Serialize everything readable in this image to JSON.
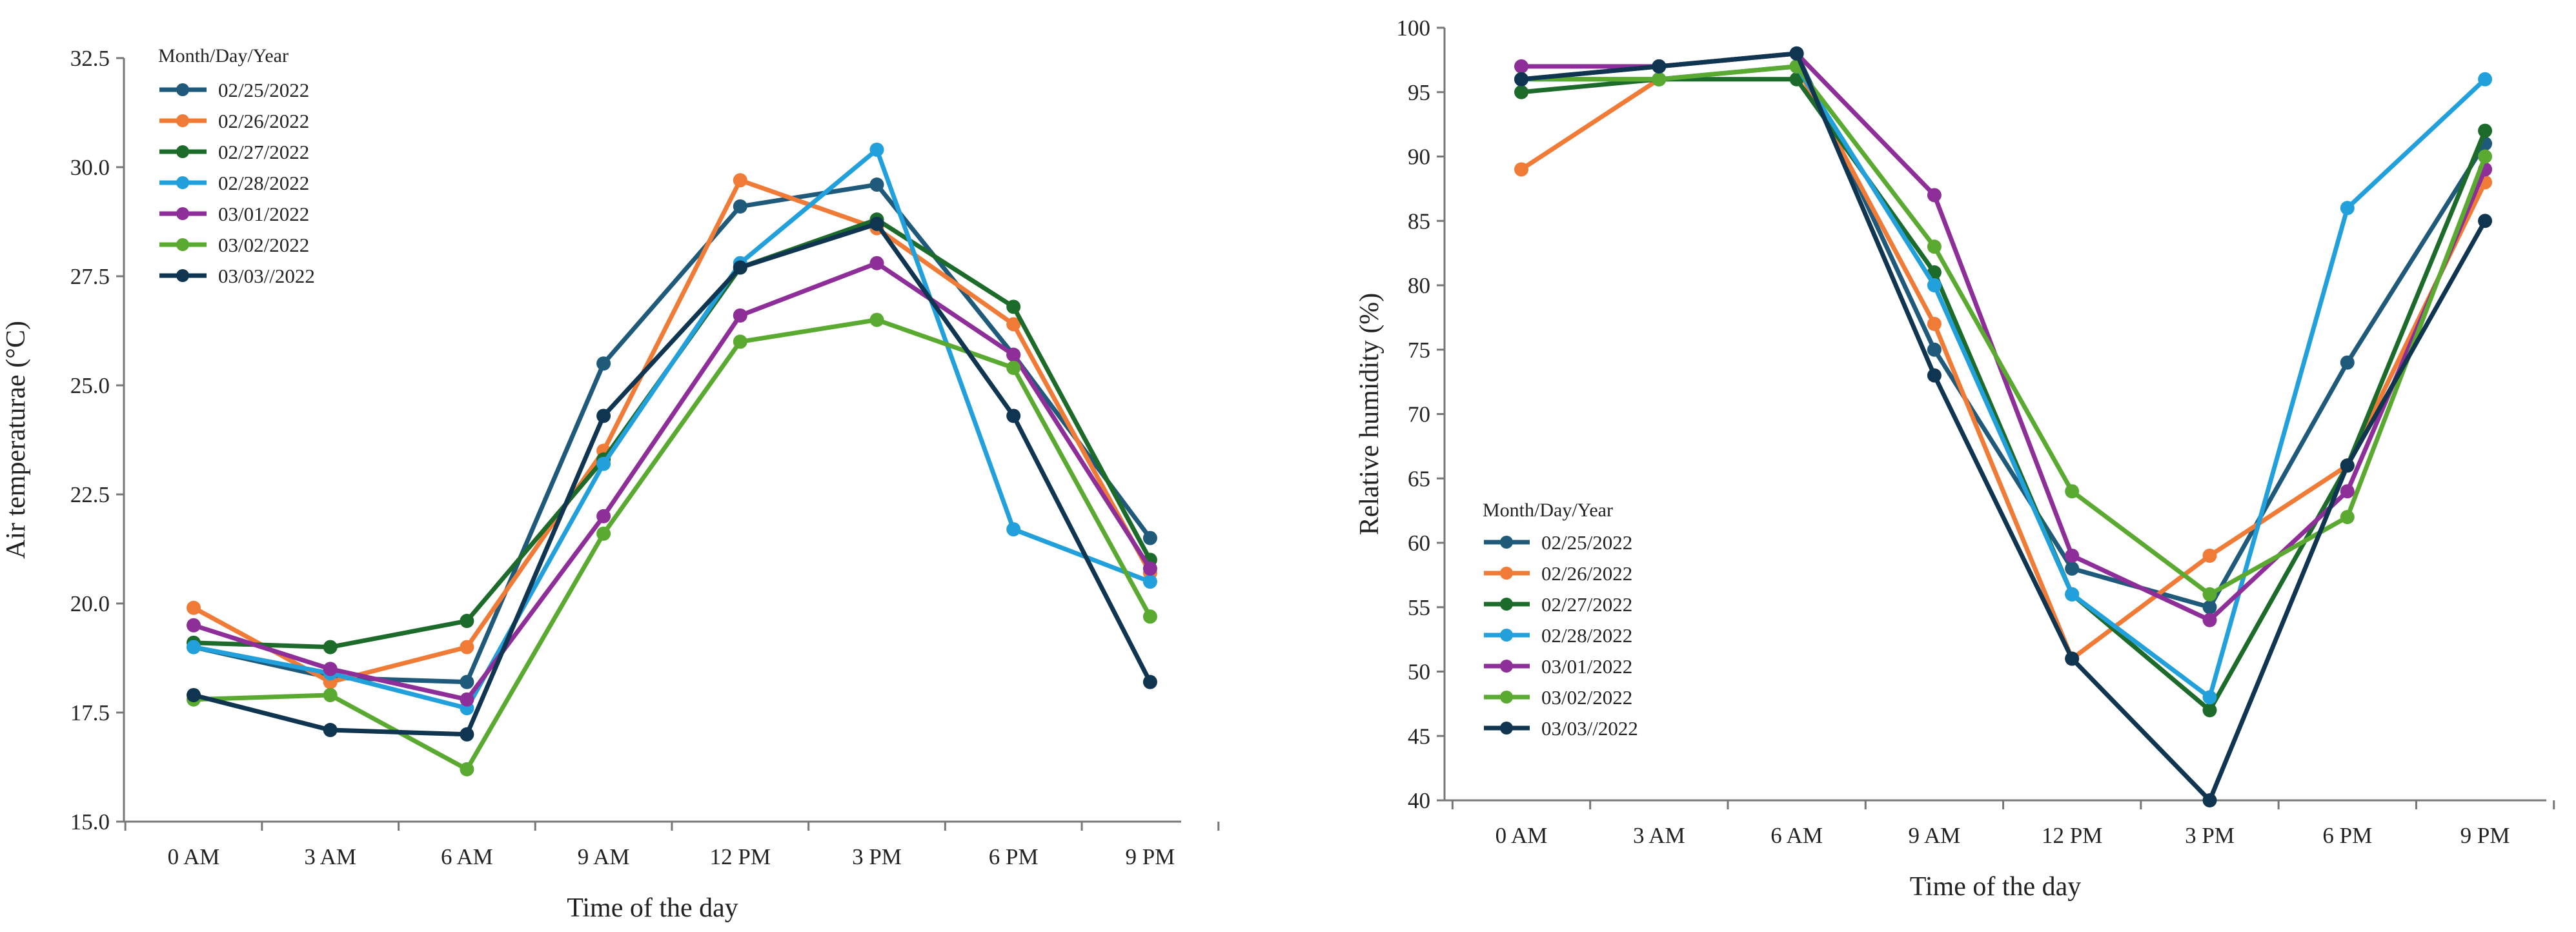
{
  "chart_data": [
    {
      "type": "line",
      "title": "",
      "xlabel": "Time of the day",
      "ylabel": "Air temperaturae (°C)",
      "ylim": [
        15.0,
        32.5
      ],
      "yticks": [
        "15.0",
        "17.5",
        "20.0",
        "22.5",
        "25.0",
        "27.5",
        "30.0",
        "32.5"
      ],
      "categories": [
        "0 AM",
        "3 AM",
        "6 AM",
        "9 AM",
        "12 PM",
        "3 PM",
        "6 PM",
        "9 PM"
      ],
      "legend_title": "Month/Day/Year",
      "legend_position": "top-left",
      "grid": false,
      "series": [
        {
          "name": "02/25/2022",
          "color": "#1F5A7A",
          "values": [
            19.0,
            18.3,
            18.2,
            25.5,
            29.1,
            29.6,
            25.7,
            21.5
          ]
        },
        {
          "name": "02/26/2022",
          "color": "#F07B36",
          "values": [
            19.9,
            18.2,
            19.0,
            23.5,
            29.7,
            28.6,
            26.4,
            20.7
          ]
        },
        {
          "name": "02/27/2022",
          "color": "#1D6B2A",
          "values": [
            19.1,
            19.0,
            19.6,
            23.3,
            27.7,
            28.8,
            26.8,
            21.0
          ]
        },
        {
          "name": "02/28/2022",
          "color": "#22A0DC",
          "values": [
            19.0,
            18.4,
            17.6,
            23.2,
            27.8,
            30.4,
            21.7,
            20.5
          ]
        },
        {
          "name": "03/01/2022",
          "color": "#8E2E98",
          "values": [
            19.5,
            18.5,
            17.8,
            22.0,
            26.6,
            27.8,
            25.7,
            20.8
          ]
        },
        {
          "name": "03/02/2022",
          "color": "#5AAA32",
          "values": [
            17.8,
            17.9,
            16.2,
            21.6,
            26.0,
            26.5,
            25.4,
            19.7
          ]
        },
        {
          "name": "03/03//2022",
          "color": "#0F3550",
          "values": [
            17.9,
            17.1,
            17.0,
            24.3,
            27.7,
            28.7,
            24.3,
            18.2
          ]
        }
      ]
    },
    {
      "type": "line",
      "title": "",
      "xlabel": "Time of the day",
      "ylabel": "Relative humidity (%)",
      "ylim": [
        40,
        100
      ],
      "yticks": [
        "40",
        "45",
        "50",
        "55",
        "60",
        "65",
        "70",
        "75",
        "80",
        "85",
        "90",
        "95",
        "100"
      ],
      "categories": [
        "0 AM",
        "3 AM",
        "6 AM",
        "9 AM",
        "12 PM",
        "3 PM",
        "6 PM",
        "9 PM"
      ],
      "legend_title": "Month/Day/Year",
      "legend_position": "bottom-left",
      "grid": false,
      "series": [
        {
          "name": "02/25/2022",
          "color": "#1F5A7A",
          "values": [
            96,
            97,
            98,
            75,
            58,
            55,
            74,
            91
          ]
        },
        {
          "name": "02/26/2022",
          "color": "#F07B36",
          "values": [
            89,
            96,
            97,
            77,
            51,
            59,
            66,
            88
          ]
        },
        {
          "name": "02/27/2022",
          "color": "#1D6B2A",
          "values": [
            95,
            96,
            96,
            81,
            56,
            47,
            66,
            92
          ]
        },
        {
          "name": "02/28/2022",
          "color": "#22A0DC",
          "values": [
            96,
            96,
            97,
            80,
            56,
            48,
            86,
            96
          ]
        },
        {
          "name": "03/01/2022",
          "color": "#8E2E98",
          "values": [
            97,
            97,
            98,
            87,
            59,
            54,
            64,
            89
          ]
        },
        {
          "name": "03/02/2022",
          "color": "#5AAA32",
          "values": [
            96,
            96,
            97,
            83,
            64,
            56,
            62,
            90
          ]
        },
        {
          "name": "03/03//2022",
          "color": "#0F3550",
          "values": [
            96,
            97,
            98,
            73,
            51,
            40,
            66,
            85
          ]
        }
      ]
    }
  ]
}
